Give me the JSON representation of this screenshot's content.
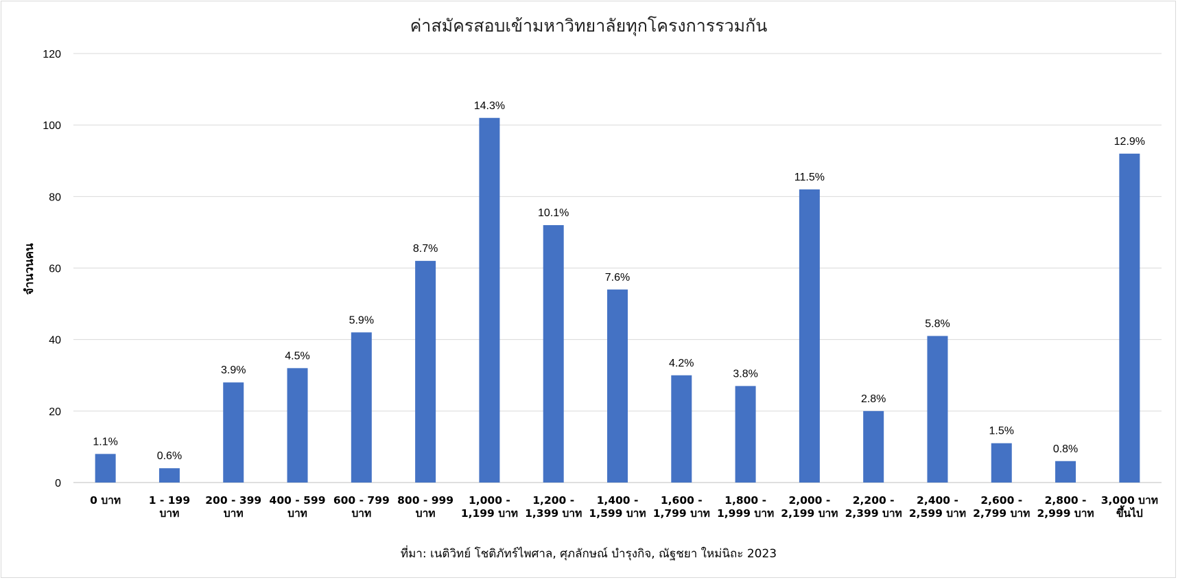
{
  "chart_data": {
    "type": "bar",
    "title": "ค่าสมัครสอบเข้ามหาวิทยาลัยทุกโครงการรวมกัน",
    "ylabel": "จำนวนคน",
    "xlabel": "",
    "source": "ที่มา: เนติวิทย์ โชติภัทร์ไพศาล, ศุภลักษณ์ บำรุงกิจ, ณัฐชยา ใหม่นิถะ 2023",
    "ylim": [
      0,
      120
    ],
    "yticks": [
      0,
      20,
      40,
      60,
      80,
      100,
      120
    ],
    "grid": true,
    "bar_color": "#4472C4",
    "categories": [
      [
        "0 บาท"
      ],
      [
        "1 - 199",
        "บาท"
      ],
      [
        "200 - 399",
        "บาท"
      ],
      [
        "400 - 599",
        "บาท"
      ],
      [
        "600 - 799",
        "บาท"
      ],
      [
        "800 - 999",
        "บาท"
      ],
      [
        "1,000 -",
        "1,199 บาท"
      ],
      [
        "1,200 -",
        "1,399 บาท"
      ],
      [
        "1,400 -",
        "1,599 บาท"
      ],
      [
        "1,600 -",
        "1,799 บาท"
      ],
      [
        "1,800 -",
        "1,999 บาท"
      ],
      [
        "2,000 -",
        "2,199 บาท"
      ],
      [
        "2,200 -",
        "2,399 บาท"
      ],
      [
        "2,400 -",
        "2,599 บาท"
      ],
      [
        "2,600 -",
        "2,799 บาท"
      ],
      [
        "2,800 -",
        "2,999 บาท"
      ],
      [
        "3,000 บาท",
        "ขึ้นไป"
      ]
    ],
    "values": [
      8,
      4,
      28,
      32,
      42,
      62,
      102,
      72,
      54,
      30,
      27,
      82,
      20,
      41,
      11,
      6,
      92
    ],
    "data_labels": [
      "1.1%",
      "0.6%",
      "3.9%",
      "4.5%",
      "5.9%",
      "8.7%",
      "14.3%",
      "10.1%",
      "7.6%",
      "4.2%",
      "3.8%",
      "11.5%",
      "2.8%",
      "5.8%",
      "1.5%",
      "0.8%",
      "12.9%"
    ]
  }
}
